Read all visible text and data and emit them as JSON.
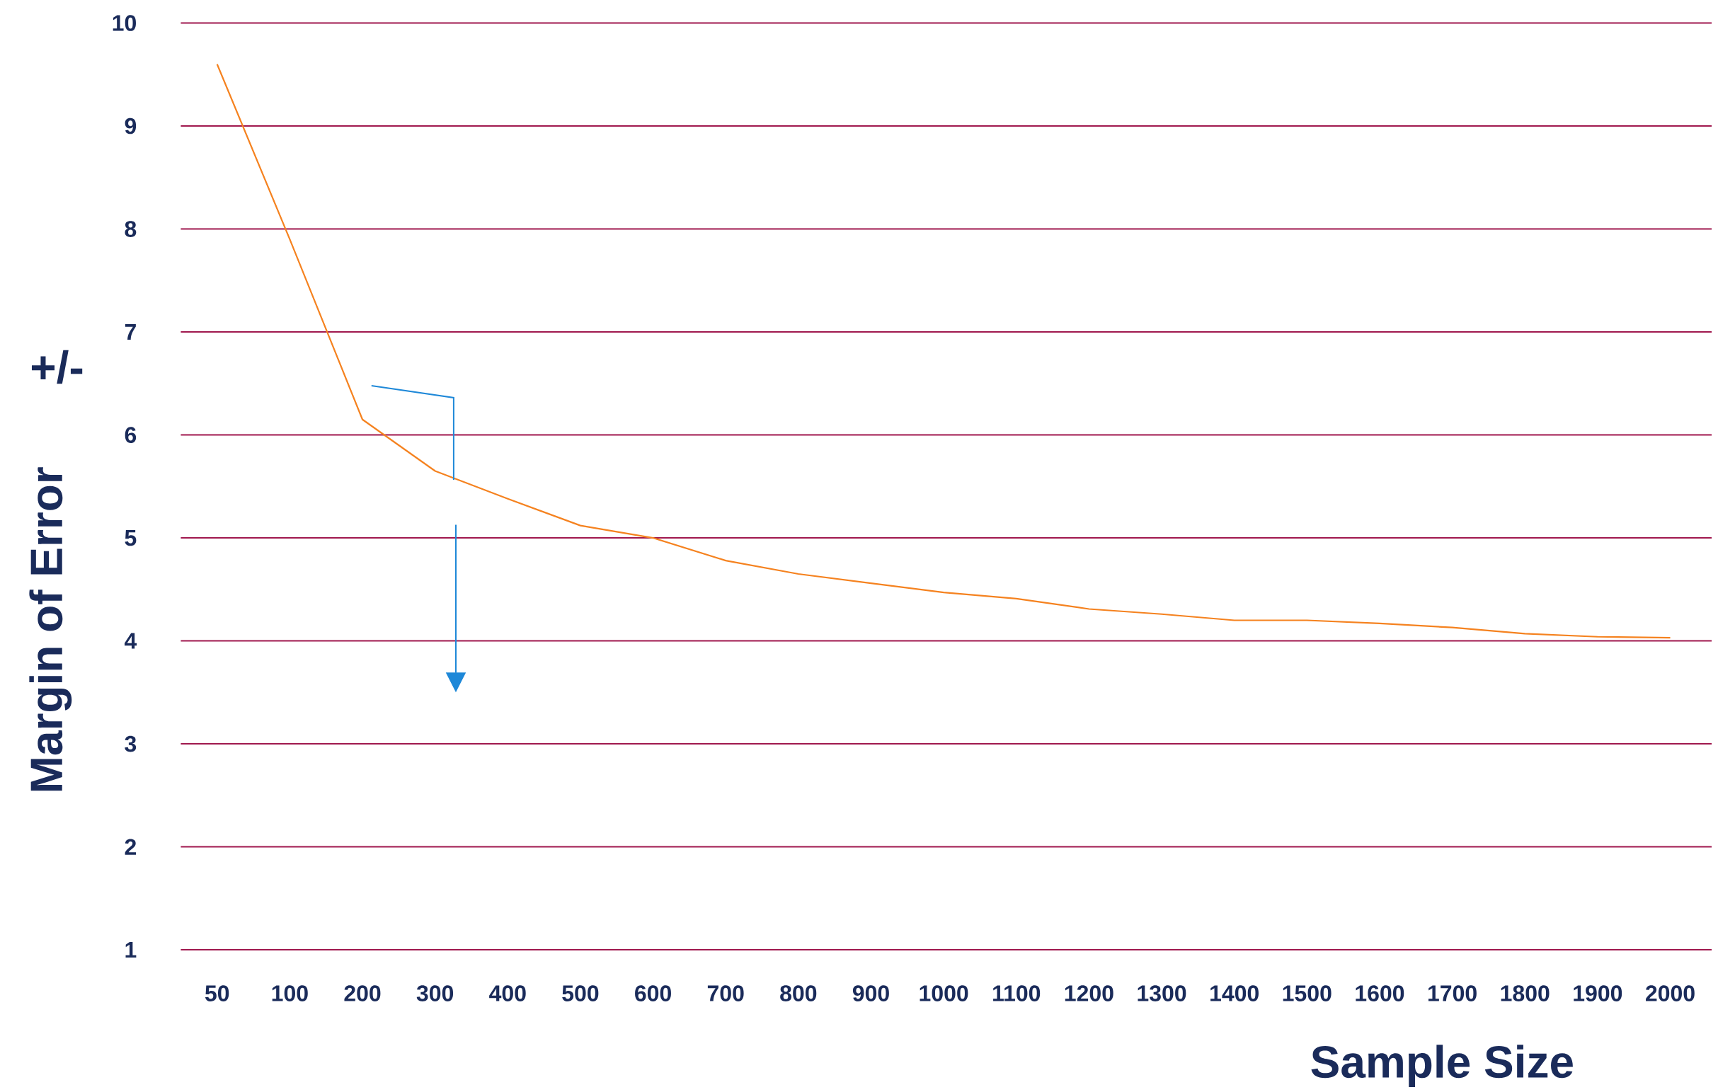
{
  "chart_data": {
    "type": "line",
    "xlabel": "Sample Size",
    "ylabel": "Margin of Error",
    "annotations": [
      "+/-"
    ],
    "categories": [
      "50",
      "100",
      "200",
      "300",
      "400",
      "500",
      "600",
      "700",
      "800",
      "900",
      "1000",
      "1100",
      "1200",
      "1300",
      "1400",
      "1500",
      "1600",
      "1700",
      "1800",
      "1900",
      "2000"
    ],
    "series": [
      {
        "color": "#f5821f",
        "values": [
          9.6,
          7.9,
          6.15,
          5.65,
          5.38,
          5.12,
          5.0,
          4.78,
          4.65,
          4.56,
          4.47,
          4.41,
          4.31,
          4.26,
          4.2,
          4.2,
          4.17,
          4.13,
          4.07,
          4.04,
          4.03
        ]
      }
    ],
    "ylim": [
      1,
      10
    ],
    "yticks": [
      1,
      2,
      3,
      4,
      5,
      6,
      7,
      8,
      9,
      10
    ],
    "grid": "y"
  }
}
